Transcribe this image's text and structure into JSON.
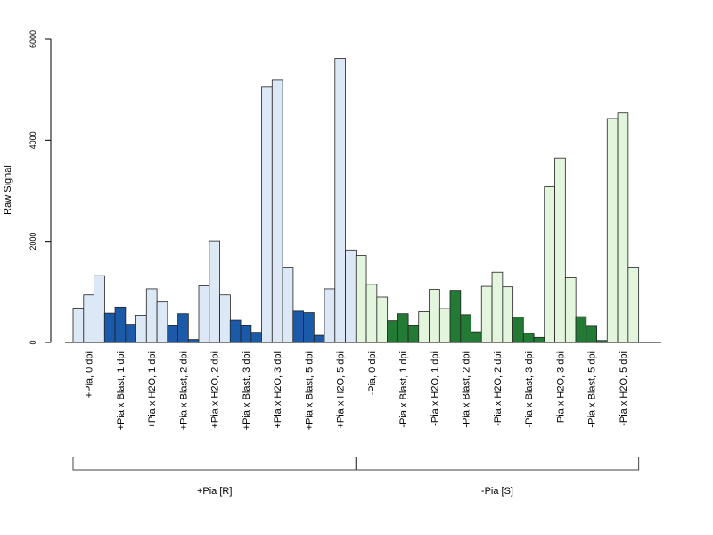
{
  "chart_data": {
    "type": "bar",
    "ylabel": "Raw Signal",
    "xlabel": "",
    "title": "",
    "ylim": [
      0,
      6000
    ],
    "yticks": [
      0,
      2000,
      4000,
      6000
    ],
    "grid": false,
    "categories": [
      "+Pia, 0 dpi",
      "+Pia x Blast, 1 dpi",
      "+Pia x H2O, 1 dpi",
      "+Pia x Blast, 2 dpi",
      "+Pia x H2O, 2 dpi",
      "+Pia x Blast, 3 dpi",
      "+Pia x H2O, 3 dpi",
      "+Pia x Blast, 5 dpi",
      "+Pia x H2O, 5 dpi",
      "-Pia, 0 dpi",
      "-Pia x Blast, 1 dpi",
      "-Pia x H2O, 1 dpi",
      "-Pia x Blast, 2 dpi",
      "-Pia x H2O, 2 dpi",
      "-Pia x Blast, 3 dpi",
      "-Pia x H2O, 3 dpi",
      "-Pia x Blast, 5 dpi",
      "-Pia x H2O, 5 dpi"
    ],
    "values": [
      [
        680,
        940,
        1320
      ],
      [
        580,
        700,
        360
      ],
      [
        540,
        1060,
        800
      ],
      [
        330,
        570,
        60
      ],
      [
        1120,
        2010,
        940
      ],
      [
        440,
        330,
        200
      ],
      [
        5050,
        5190,
        1490
      ],
      [
        620,
        590,
        140
      ],
      [
        1060,
        5620,
        1830
      ],
      [
        1720,
        1150,
        900
      ],
      [
        430,
        570,
        330
      ],
      [
        610,
        1050,
        670
      ],
      [
        1030,
        550,
        210
      ],
      [
        1110,
        1390,
        1100
      ],
      [
        500,
        180,
        100
      ],
      [
        3080,
        3650,
        1280
      ],
      [
        510,
        320,
        40
      ],
      [
        4430,
        4540,
        1490
      ]
    ],
    "colors": {
      "light_blue": "#dce8f6",
      "dark_blue": "#1a5aa8",
      "light_green": "#e4f5de",
      "dark_green": "#237a35"
    },
    "bar_fills": [
      "light_blue",
      "dark_blue",
      "light_blue",
      "dark_blue",
      "light_blue",
      "dark_blue",
      "light_blue",
      "dark_blue",
      "light_blue",
      "light_green",
      "dark_green",
      "light_green",
      "dark_green",
      "light_green",
      "dark_green",
      "light_green",
      "dark_green",
      "light_green"
    ],
    "groups": [
      {
        "label": "+Pia [R]",
        "start": 0,
        "end": 8
      },
      {
        "label": "-Pia [S]",
        "start": 9,
        "end": 17
      }
    ]
  }
}
